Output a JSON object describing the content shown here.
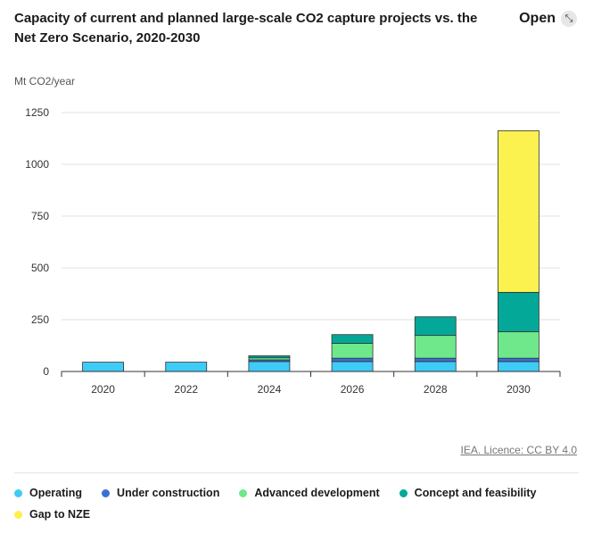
{
  "header": {
    "title": "Capacity of current and planned large-scale CO2 capture projects vs. the Net Zero Scenario, 2020-2030",
    "open_label": "Open",
    "open_icon": "expand-arrow-icon"
  },
  "source": "IEA. Licence: CC BY 4.0",
  "chart_data": {
    "type": "bar",
    "stacked": true,
    "title": "Capacity of current and planned large-scale CO2 capture projects vs. the Net Zero Scenario, 2020-2030",
    "ylabel": "Mt CO2/year",
    "xlabel": "",
    "ylim": [
      0,
      1250
    ],
    "yticks": [
      "0",
      "250",
      "500",
      "750",
      "1000",
      "1250"
    ],
    "grid": true,
    "legend_position": "bottom",
    "categories": [
      "2020",
      "2022",
      "2024",
      "2026",
      "2028",
      "2030"
    ],
    "series": [
      {
        "name": "Operating",
        "color": "#3ecbf5",
        "values": [
          45,
          45,
          48,
          48,
          48,
          48
        ]
      },
      {
        "name": "Under construction",
        "color": "#3b6fd4",
        "values": [
          0,
          0,
          8,
          16,
          16,
          16
        ]
      },
      {
        "name": "Advanced development",
        "color": "#6ee88b",
        "values": [
          0,
          0,
          10,
          72,
          110,
          128
        ]
      },
      {
        "name": "Concept and feasibility",
        "color": "#04a898",
        "values": [
          0,
          0,
          10,
          42,
          90,
          190
        ]
      },
      {
        "name": "Gap to NZE",
        "color": "#fbf14f",
        "values": [
          0,
          0,
          0,
          0,
          0,
          780
        ]
      }
    ]
  }
}
